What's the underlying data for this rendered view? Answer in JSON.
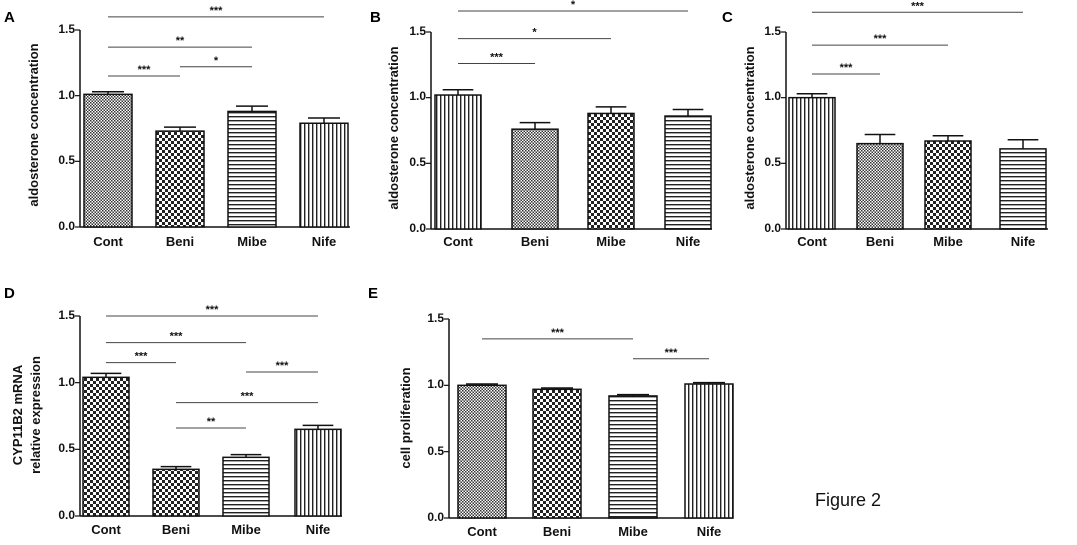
{
  "figure_label": "Figure 2",
  "colors": {
    "ink": "#111111",
    "fill": "#ffffff"
  },
  "chart_data": [
    {
      "panel": "A",
      "type": "bar",
      "ylabel": "aldosterone concentration",
      "categories": [
        "Cont",
        "Beni",
        "Mibe",
        "Nife"
      ],
      "values": [
        1.01,
        0.73,
        0.88,
        0.79
      ],
      "errors": [
        0.02,
        0.03,
        0.04,
        0.04
      ],
      "patterns": [
        "dots",
        "checker",
        "hlines",
        "vlines"
      ],
      "ylim": [
        0,
        1.5
      ],
      "yticks": [
        "0.0",
        "0.5",
        "1.0",
        "1.5"
      ],
      "significance": [
        {
          "from": 0,
          "to": 3,
          "y": 1.6,
          "label": "***"
        },
        {
          "from": 0,
          "to": 2,
          "y": 1.37,
          "label": "**"
        },
        {
          "from": 0,
          "to": 1,
          "y": 1.15,
          "label": "***"
        },
        {
          "from": 1,
          "to": 2,
          "y": 1.22,
          "label": "*"
        }
      ]
    },
    {
      "panel": "B",
      "type": "bar",
      "ylabel": "aldosterone concentration",
      "categories": [
        "Cont",
        "Beni",
        "Mibe",
        "Nife"
      ],
      "values": [
        1.02,
        0.76,
        0.88,
        0.86
      ],
      "errors": [
        0.04,
        0.05,
        0.05,
        0.05
      ],
      "patterns": [
        "vlines",
        "dots",
        "checker",
        "hlines"
      ],
      "ylim": [
        0,
        1.5
      ],
      "yticks": [
        "0.0",
        "0.5",
        "1.0",
        "1.5"
      ],
      "significance": [
        {
          "from": 0,
          "to": 3,
          "y": 1.66,
          "label": "*"
        },
        {
          "from": 0,
          "to": 2,
          "y": 1.45,
          "label": "*"
        },
        {
          "from": 0,
          "to": 1,
          "y": 1.26,
          "label": "***"
        }
      ]
    },
    {
      "panel": "C",
      "type": "bar",
      "ylabel": "aldosterone concentration",
      "categories": [
        "Cont",
        "Beni",
        "Mibe",
        "Nife"
      ],
      "values": [
        1.0,
        0.65,
        0.67,
        0.61
      ],
      "errors": [
        0.03,
        0.07,
        0.04,
        0.07
      ],
      "patterns": [
        "vlines",
        "dots",
        "checker",
        "hlines"
      ],
      "ylim": [
        0,
        1.5
      ],
      "yticks": [
        "0.0",
        "0.5",
        "1.0",
        "1.5"
      ],
      "significance": [
        {
          "from": 0,
          "to": 3,
          "y": 1.65,
          "label": "***"
        },
        {
          "from": 0,
          "to": 2,
          "y": 1.4,
          "label": "***"
        },
        {
          "from": 0,
          "to": 1,
          "y": 1.18,
          "label": "***"
        }
      ]
    },
    {
      "panel": "D",
      "type": "bar",
      "ylabel": "CYP11B2 mRNA",
      "ylabel2": "relative expression",
      "categories": [
        "Cont",
        "Beni",
        "Mibe",
        "Nife"
      ],
      "values": [
        1.04,
        0.35,
        0.44,
        0.65
      ],
      "errors": [
        0.03,
        0.02,
        0.02,
        0.03
      ],
      "patterns": [
        "checker",
        "checker",
        "hlines",
        "vlines"
      ],
      "ylim": [
        0,
        1.5
      ],
      "yticks": [
        "0.0",
        "0.5",
        "1.0",
        "1.5"
      ],
      "significance": [
        {
          "from": 0,
          "to": 3,
          "y": 1.5,
          "label": "***"
        },
        {
          "from": 0,
          "to": 2,
          "y": 1.3,
          "label": "***"
        },
        {
          "from": 0,
          "to": 1,
          "y": 1.15,
          "label": "***"
        },
        {
          "from": 2,
          "to": 3,
          "y": 1.08,
          "label": "***"
        },
        {
          "from": 1,
          "to": 3,
          "y": 0.85,
          "label": "***"
        },
        {
          "from": 1,
          "to": 2,
          "y": 0.66,
          "label": "**"
        }
      ]
    },
    {
      "panel": "E",
      "type": "bar",
      "ylabel": "cell proliferation",
      "categories": [
        "Cont",
        "Beni",
        "Mibe",
        "Nife"
      ],
      "values": [
        1.0,
        0.97,
        0.92,
        1.01
      ],
      "errors": [
        0.01,
        0.01,
        0.01,
        0.01
      ],
      "patterns": [
        "dots",
        "checker",
        "hlines",
        "vlines"
      ],
      "ylim": [
        0,
        1.5
      ],
      "yticks": [
        "0.0",
        "0.5",
        "1.0",
        "1.5"
      ],
      "significance": [
        {
          "from": 0,
          "to": 2,
          "y": 1.35,
          "label": "***"
        },
        {
          "from": 2,
          "to": 3,
          "y": 1.2,
          "label": "***"
        }
      ]
    }
  ]
}
